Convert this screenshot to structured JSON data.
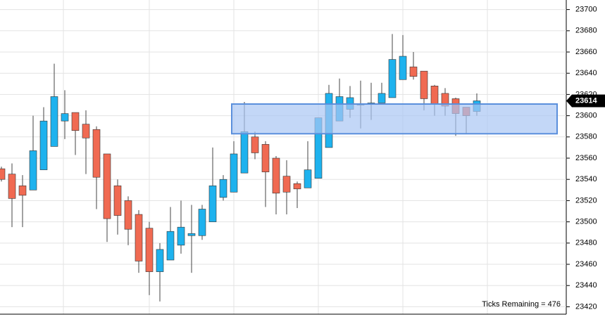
{
  "chart_data": {
    "type": "candlestick",
    "open": [
      23550,
      23545,
      23534,
      23530,
      23549,
      23571,
      23595,
      23603,
      23592,
      23587,
      23564,
      23534,
      23520,
      23507,
      23494,
      23453,
      23464,
      23478,
      23487,
      23487,
      23500,
      23523,
      23528,
      23546,
      23580,
      23573,
      23560,
      23543,
      23536,
      23532,
      23541,
      23570,
      23595,
      23606,
      23610,
      23611,
      23612,
      23617,
      23634,
      23646,
      23642,
      23628,
      23621,
      23616,
      23608,
      23604
    ],
    "high": [
      23552,
      23555,
      23544,
      23600,
      23608,
      23649,
      23624,
      23603,
      23605,
      23590,
      23564,
      23540,
      23524,
      23511,
      23500,
      23480,
      23514,
      23520,
      23516,
      23516,
      23570,
      23544,
      23576,
      23613,
      23585,
      23576,
      23562,
      23558,
      23538,
      23576,
      23598,
      23629,
      23635,
      23628,
      23633,
      23631,
      23631,
      23677,
      23676,
      23660,
      23642,
      23629,
      23626,
      23617,
      23608,
      23621
    ],
    "low": [
      23538,
      23495,
      23495,
      23530,
      23549,
      23571,
      23578,
      23563,
      23545,
      23512,
      23481,
      23488,
      23478,
      23452,
      23431,
      23425,
      23464,
      23470,
      23452,
      23483,
      23500,
      23520,
      23528,
      23546,
      23559,
      23514,
      23507,
      23507,
      23513,
      23532,
      23541,
      23570,
      23595,
      23598,
      23588,
      23596,
      23612,
      23617,
      23634,
      23634,
      23605,
      23600,
      23600,
      23581,
      23583,
      23600
    ],
    "close": [
      23540,
      23522,
      23525,
      23567,
      23595,
      23618,
      23602,
      23586,
      23579,
      23542,
      23503,
      23506,
      23493,
      23463,
      23453,
      23474,
      23491,
      23495,
      23489,
      23512,
      23534,
      23540,
      23564,
      23585,
      23565,
      23547,
      23527,
      23528,
      23531,
      23549,
      23598,
      23621,
      23618,
      23617,
      23611,
      23612,
      23621,
      23653,
      23656,
      23637,
      23616,
      23611,
      23609,
      23602,
      23600,
      23614
    ],
    "up_color": "#1eb2ee",
    "down_color": "#f06a52",
    "ylim": [
      23413,
      23709
    ],
    "yticks": [
      23420,
      23440,
      23460,
      23480,
      23500,
      23520,
      23540,
      23560,
      23580,
      23600,
      23620,
      23640,
      23660,
      23680,
      23700
    ],
    "grid": true,
    "last_price": 23614,
    "zone": {
      "high": 23611,
      "low": 23583,
      "x": [
        21.8,
        52.6
      ],
      "color": "#a9c6f4"
    },
    "footer": "Ticks Remaining = 476"
  }
}
